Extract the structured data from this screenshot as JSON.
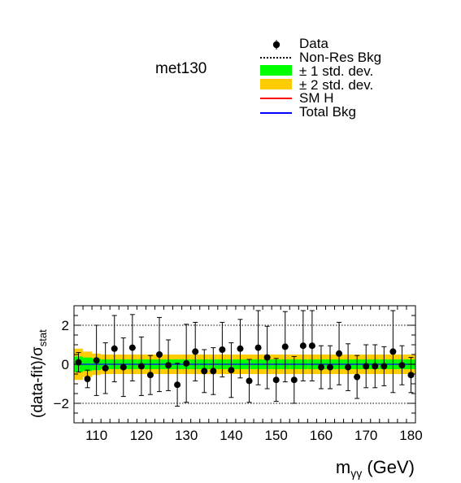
{
  "category_label": "met130",
  "legend": {
    "items": [
      {
        "label": "Data",
        "style": "marker"
      },
      {
        "label": "Non-Res Bkg",
        "style": "dotted",
        "color": "#000000"
      },
      {
        "label": "± 1 std. dev.",
        "style": "box",
        "color": "#00ff00"
      },
      {
        "label": "± 2 std. dev.",
        "style": "box",
        "color": "#ffcc00"
      },
      {
        "label": "SM H",
        "style": "line",
        "color": "#ff0000"
      },
      {
        "label": "Total Bkg",
        "style": "line",
        "color": "#0000ff"
      }
    ]
  },
  "chart_data": {
    "type": "scatter",
    "title": "",
    "xlabel": "m_γγ (GeV)",
    "ylabel": "(data-fit)/σ_stat",
    "xlim": [
      105,
      181
    ],
    "ylim": [
      -3,
      3
    ],
    "x_ticks": [
      110,
      120,
      130,
      140,
      150,
      160,
      170,
      180
    ],
    "y_ticks": [
      -2,
      0,
      2
    ],
    "reference_lines": [
      2,
      -2
    ],
    "series": [
      {
        "name": "Data",
        "x": [
          106,
          108,
          110,
          112,
          114,
          116,
          118,
          120,
          122,
          124,
          126,
          128,
          130,
          132,
          134,
          136,
          138,
          140,
          142,
          144,
          146,
          148,
          150,
          152,
          154,
          156,
          158,
          160,
          162,
          164,
          166,
          168,
          170,
          172,
          174,
          176,
          178,
          180
        ],
        "y": [
          0.1,
          -0.75,
          0.2,
          -0.2,
          0.8,
          -0.15,
          0.85,
          -0.1,
          -0.55,
          0.5,
          -0.05,
          -1.05,
          0.05,
          0.65,
          -0.35,
          -0.35,
          0.75,
          -0.3,
          0.8,
          -0.85,
          0.85,
          0.35,
          -0.8,
          0.9,
          -0.8,
          0.95,
          0.95,
          -0.15,
          -0.15,
          0.55,
          -0.15,
          -0.65,
          -0.1,
          -0.1,
          -0.1,
          0.65,
          -0.05,
          -0.55
        ],
        "err": [
          0.5,
          0.45,
          1.8,
          1.3,
          1.7,
          1.5,
          1.7,
          1.5,
          1.0,
          1.9,
          1.3,
          1.1,
          2.0,
          1.5,
          1.1,
          1.2,
          1.4,
          1.4,
          1.5,
          1.1,
          1.9,
          1.6,
          1.1,
          1.8,
          1.2,
          1.8,
          1.8,
          1.1,
          1.1,
          1.6,
          1.2,
          1.1,
          1.1,
          1.1,
          1.0,
          2.1,
          1.0,
          0.9
        ]
      }
    ],
    "bands": {
      "one_sigma": 0.25,
      "two_sigma": 0.5,
      "band_edge_widening": {
        "x": [
          106,
          108,
          110
        ],
        "two_sigma": [
          0.8,
          0.65,
          0.55
        ],
        "one_sigma": [
          0.4,
          0.35,
          0.3
        ]
      }
    }
  }
}
